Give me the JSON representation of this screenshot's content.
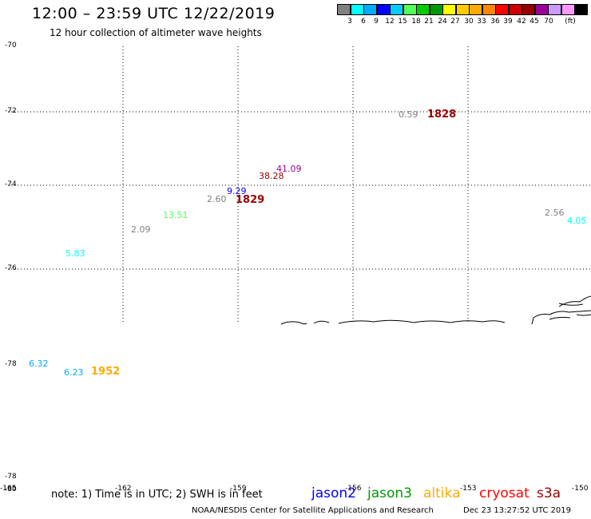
{
  "header": {
    "title": "12:00 – 23:59 UTC 12/22/2019",
    "subtitle": "12 hour collection of altimeter wave heights"
  },
  "colorbar": {
    "colors": [
      "#808080",
      "#00ffff",
      "#00aaff",
      "#0000ff",
      "#00ccff",
      "#55ff55",
      "#00cc00",
      "#009900",
      "#ffff00",
      "#ffcc00",
      "#ffaa00",
      "#ff8800",
      "#ff0000",
      "#cc0000",
      "#990000",
      "#990099",
      "#cc99ff",
      "#ff99ff",
      "#000000"
    ],
    "labels": [
      "3",
      "6",
      "9",
      "12",
      "15",
      "18",
      "21",
      "24",
      "27",
      "30",
      "33",
      "36",
      "39",
      "42",
      "45",
      "70",
      "(ft)"
    ]
  },
  "map": {
    "lat_labels": [
      "-70",
      "-72",
      "-74",
      "-76",
      "-78",
      "-78",
      "-80"
    ],
    "lon_labels": [
      "-165",
      "-162",
      "-159",
      "-156",
      "-153",
      "-150"
    ]
  },
  "observations": [
    {
      "value": "0.59",
      "color": "#808080"
    },
    {
      "value": "41.09",
      "color": "#990099"
    },
    {
      "value": "38.28",
      "color": "#990000"
    },
    {
      "value": "9.29",
      "color": "#0000ff"
    },
    {
      "value": "2.60",
      "color": "#808080"
    },
    {
      "value": "13.51",
      "color": "#55ff55"
    },
    {
      "value": "2.09",
      "color": "#808080"
    },
    {
      "value": "5.83",
      "color": "#00ffff"
    },
    {
      "value": "2.56",
      "color": "#808080"
    },
    {
      "value": "4.05",
      "color": "#00ffff"
    },
    {
      "value": "6.32",
      "color": "#00aaff"
    },
    {
      "value": "6.23",
      "color": "#00aaff"
    }
  ],
  "time_labels": [
    {
      "value": "1828",
      "color": "#990000"
    },
    {
      "value": "1829",
      "color": "#990000"
    },
    {
      "value": "1952",
      "color": "#ffaa00"
    }
  ],
  "footer": {
    "note": "note: 1) Time is in UTC; 2) SWH is in feet",
    "legend": [
      {
        "label": "jason2",
        "color": "#0000ff"
      },
      {
        "label": "jason3",
        "color": "#009900"
      },
      {
        "label": "altika",
        "color": "#ffaa00"
      },
      {
        "label": "cryosat",
        "color": "#ff0000"
      },
      {
        "label": "s3a",
        "color": "#990000"
      }
    ],
    "credit": "NOAA/NESDIS Center for Satellite Applications and Research",
    "timestamp": "Dec 23 13:27:52 UTC 2019"
  }
}
